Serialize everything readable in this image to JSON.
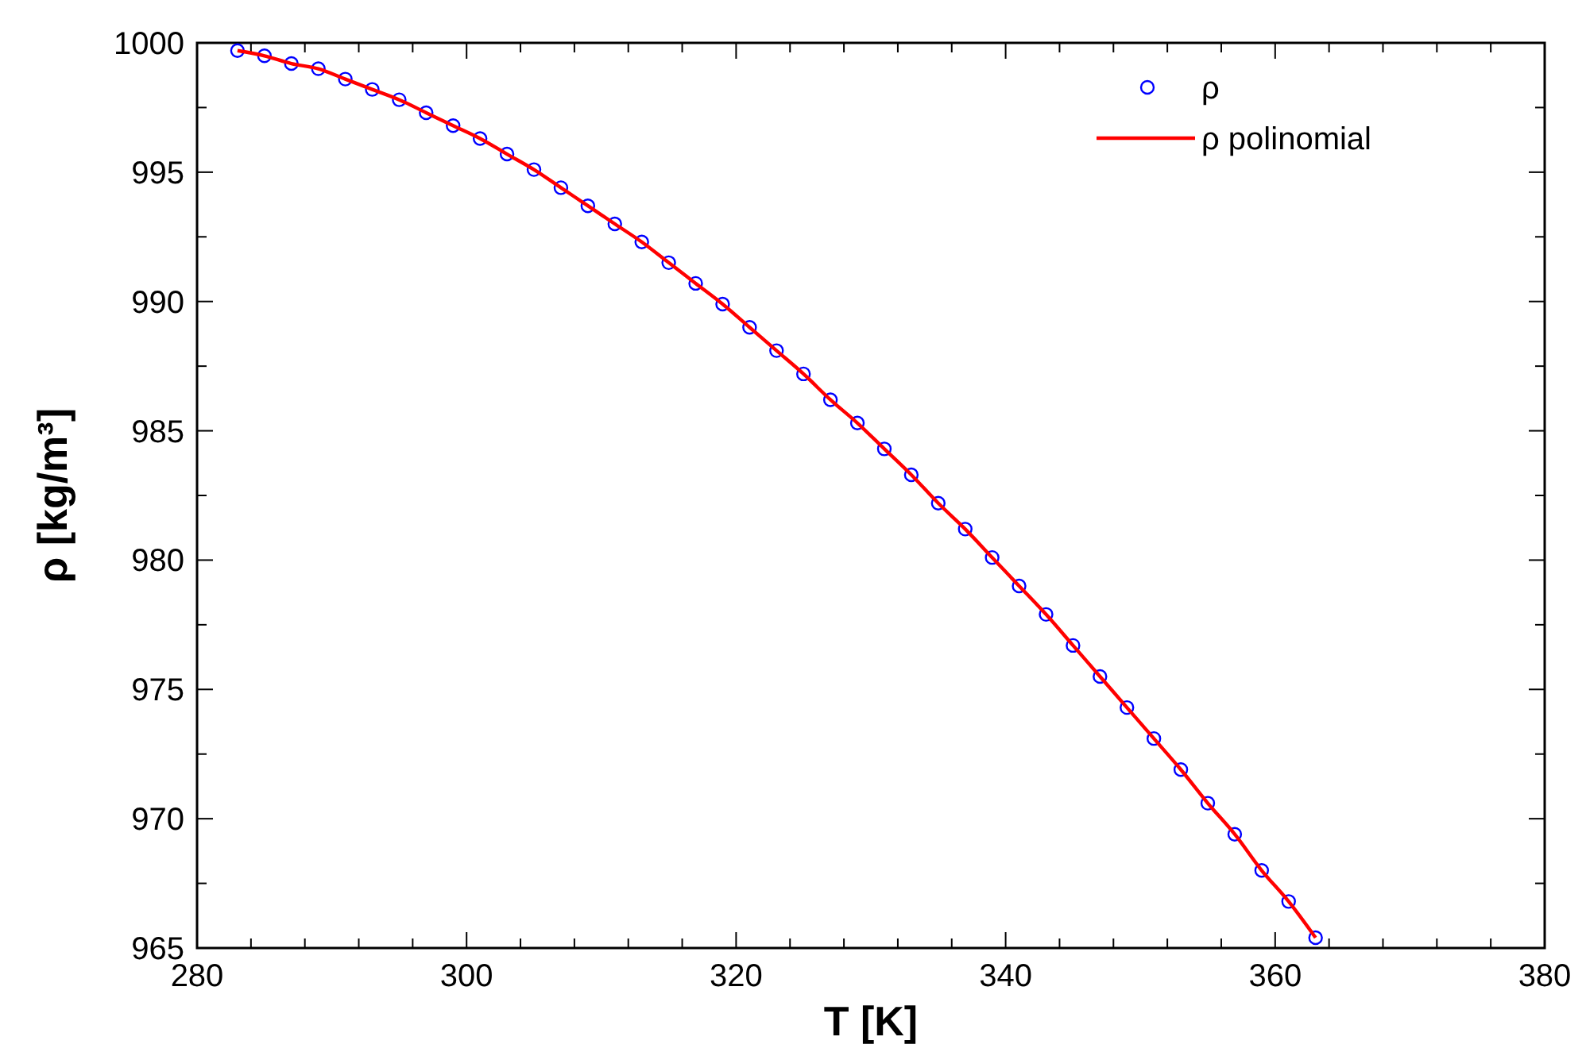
{
  "chart_data": {
    "type": "scatter",
    "xlabel": "T [K]",
    "ylabel": "ρ [kg/m³]",
    "x": [
      283,
      285,
      287,
      289,
      291,
      293,
      295,
      297,
      299,
      301,
      303,
      305,
      307,
      309,
      311,
      313,
      315,
      317,
      319,
      321,
      323,
      325,
      327,
      329,
      331,
      333,
      335,
      337,
      339,
      341,
      343,
      345,
      347,
      349,
      351,
      353,
      355,
      357,
      359,
      361,
      363
    ],
    "series": [
      {
        "name": "ρ",
        "marker": "circle",
        "color": "#0000ff",
        "values": [
          999.7,
          999.5,
          999.2,
          999.0,
          998.6,
          998.2,
          997.8,
          997.3,
          996.8,
          996.3,
          995.7,
          995.1,
          994.4,
          993.7,
          993.0,
          992.3,
          991.5,
          990.7,
          989.9,
          989.0,
          988.1,
          987.2,
          986.2,
          985.3,
          984.3,
          983.3,
          982.2,
          981.2,
          980.1,
          979.0,
          977.9,
          976.7,
          975.5,
          974.3,
          973.1,
          971.9,
          970.6,
          969.4,
          968.0,
          966.8,
          965.4
        ]
      },
      {
        "name": "ρ polinomial",
        "type": "line",
        "marker": "none",
        "line_style": "solid",
        "color": "#ff0000",
        "values": [
          999.7,
          999.5,
          999.2,
          999.0,
          998.6,
          998.2,
          997.8,
          997.3,
          996.8,
          996.3,
          995.7,
          995.1,
          994.4,
          993.7,
          993.0,
          992.3,
          991.5,
          990.7,
          989.9,
          989.0,
          988.1,
          987.2,
          986.2,
          985.3,
          984.3,
          983.3,
          982.2,
          981.2,
          980.1,
          979.0,
          977.9,
          976.7,
          975.5,
          974.3,
          973.1,
          971.9,
          970.6,
          969.4,
          968.0,
          966.8,
          965.4
        ]
      }
    ],
    "xlim": [
      280,
      380
    ],
    "xticks": [
      280,
      {
        "value": 284,
        "label": null
      },
      {
        "value": 288,
        "label": null
      },
      {
        "value": 292,
        "label": null
      },
      {
        "value": 296,
        "label": null
      },
      300,
      {
        "value": 304,
        "label": null
      },
      {
        "value": 308,
        "label": null
      },
      {
        "value": 312,
        "label": null
      },
      {
        "value": 316,
        "label": null
      },
      320,
      {
        "value": 324,
        "label": null
      },
      {
        "value": 328,
        "label": null
      },
      {
        "value": 332,
        "label": null
      },
      {
        "value": 336,
        "label": null
      },
      340,
      {
        "value": 344,
        "label": null
      },
      {
        "value": 348,
        "label": null
      },
      {
        "value": 352,
        "label": null
      },
      {
        "value": 356,
        "label": null
      },
      360,
      {
        "value": 364,
        "label": null
      },
      {
        "value": 368,
        "label": null
      },
      {
        "value": 372,
        "label": null
      },
      {
        "value": 376,
        "label": null
      },
      380
    ],
    "ylim": [
      965,
      1000
    ],
    "yticks": [
      965,
      {
        "value": 967.5,
        "label": null
      },
      970,
      {
        "value": 972.5,
        "label": null
      },
      975,
      {
        "value": 977.5,
        "label": null
      },
      980,
      {
        "value": 982.5,
        "label": null
      },
      985,
      {
        "value": 987.5,
        "label": null
      },
      990,
      {
        "value": 992.5,
        "label": null
      },
      995,
      {
        "value": 997.5,
        "label": null
      },
      1000
    ],
    "grid": false,
    "legend": "top right"
  }
}
